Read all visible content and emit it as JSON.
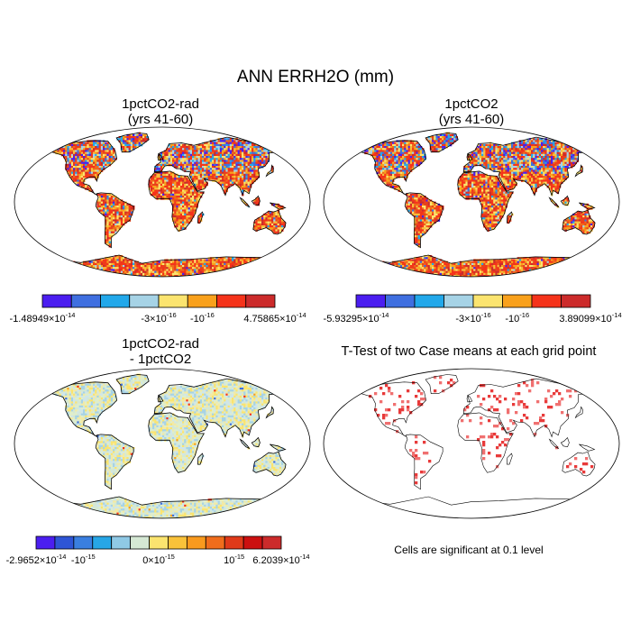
{
  "figure": {
    "title": "ANN ERRH2O (mm)"
  },
  "panels": [
    {
      "id": "case1",
      "title_line1": "1pctCO2-rad",
      "title_line2": "(yrs 41-60)",
      "style": "full"
    },
    {
      "id": "case2",
      "title_line1": "1pctCO2",
      "title_line2": "(yrs 41-60)",
      "style": "full"
    },
    {
      "id": "diff",
      "title_line1": "1pctCO2-rad",
      "title_line2": "- 1pctCO2",
      "style": "diff"
    },
    {
      "id": "ttest",
      "title_line1": "T-Test of two Case means at each grid point",
      "title_line2": "",
      "style": "ttest"
    }
  ],
  "colorbars": [
    {
      "id": "cbar1",
      "colors": [
        "#4b1ef0",
        "#3f6fe0",
        "#22a8ea",
        "#a6d3e6",
        "#fbe46f",
        "#f9a11c",
        "#f5331a",
        "#cc2b2b"
      ],
      "labels": [
        {
          "text": "-1.48949×10",
          "exp": "-14",
          "at": 0
        },
        {
          "text": "-3×10",
          "exp": "-16",
          "at": 4
        },
        {
          "text": "-10",
          "exp": "-16",
          "at": 5.5
        },
        {
          "text": "4.75865×10",
          "exp": "-14",
          "at": 8
        }
      ]
    },
    {
      "id": "cbar2",
      "colors": [
        "#4b1ef0",
        "#3f6fe0",
        "#22a8ea",
        "#a6d3e6",
        "#fbe46f",
        "#f9a11c",
        "#f5331a",
        "#cc2b2b"
      ],
      "labels": [
        {
          "text": "-5.93295×10",
          "exp": "-14",
          "at": 0
        },
        {
          "text": "-3×10",
          "exp": "-16",
          "at": 4
        },
        {
          "text": "-10",
          "exp": "-16",
          "at": 5.5
        },
        {
          "text": "3.89099×10",
          "exp": "-14",
          "at": 8
        }
      ]
    },
    {
      "id": "cbar3",
      "colors": [
        "#4b1ef0",
        "#2e55d6",
        "#3a7fe0",
        "#27a6e6",
        "#8fc9e5",
        "#d5e8d4",
        "#fbe46f",
        "#f9c23a",
        "#f99a1e",
        "#f06d1c",
        "#e03a19",
        "#cc1010",
        "#cc2b2b"
      ],
      "labels": [
        {
          "text": "-2.9652×10",
          "exp": "-14",
          "at": 0
        },
        {
          "text": "-10",
          "exp": "-15",
          "at": 2.5
        },
        {
          "text": "0×10",
          "exp": "-15",
          "at": 6.5
        },
        {
          "text": "10",
          "exp": "-15",
          "at": 10.5
        },
        {
          "text": "6.2039×10",
          "exp": "-14",
          "at": 13
        }
      ]
    }
  ],
  "note": "Cells are significant at 0.1 level"
}
